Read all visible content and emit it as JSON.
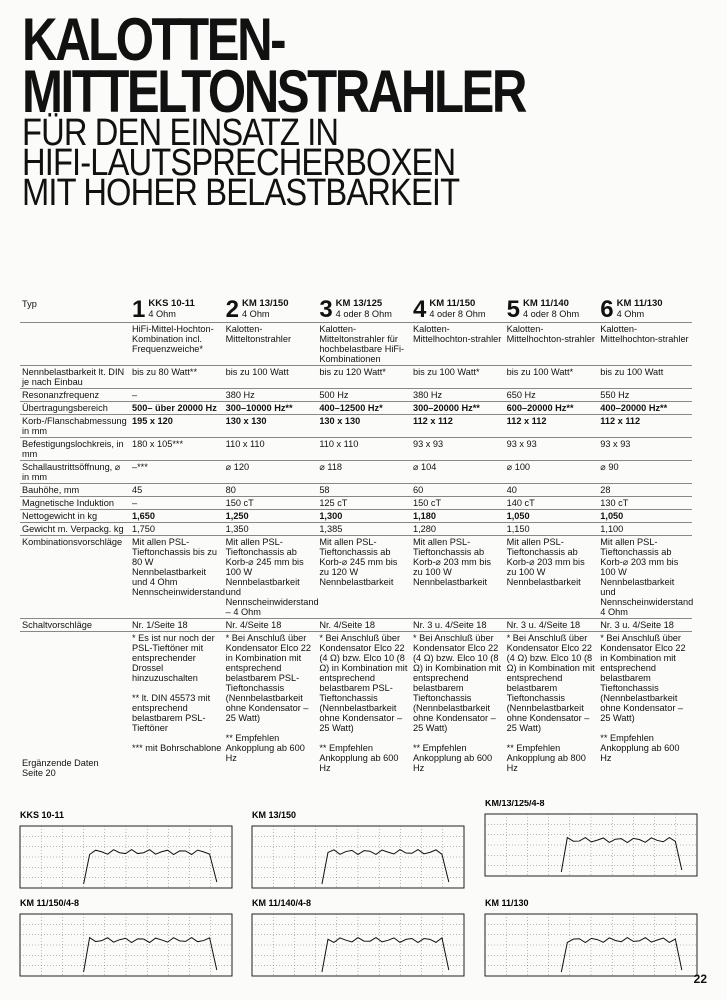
{
  "header": {
    "title_lines": [
      "KALOTTEN-",
      "MITTELTONSTRAHLER"
    ],
    "subtitle_lines": [
      "FÜR DEN EINSATZ IN",
      "HIFI-LAUTSPRECHERBOXEN",
      "MIT HOHER BELASTBARKEIT"
    ]
  },
  "table": {
    "type_label": "Typ",
    "models": [
      {
        "number": "1",
        "name": "KKS 10-11",
        "impedance": "4 Ohm",
        "description": "HiFi-Mittel-Hochton-Kombination incl. Frequenzweiche*"
      },
      {
        "number": "2",
        "name": "KM 13/150",
        "impedance": "4 Ohm",
        "description": "Kalotten-Mitteltonstrahler"
      },
      {
        "number": "3",
        "name": "KM 13/125",
        "impedance": "4 oder 8 Ohm",
        "description": "Kalotten-Mitteltonstrahler für hochbelastbare HiFi-Kombinationen"
      },
      {
        "number": "4",
        "name": "KM 11/150",
        "impedance": "4 oder 8 Ohm",
        "description": "Kalotten-Mittelhochton-strahler"
      },
      {
        "number": "5",
        "name": "KM 11/140",
        "impedance": "4 oder 8 Ohm",
        "description": "Kalotten-Mittelhochton-strahler"
      },
      {
        "number": "6",
        "name": "KM 11/130",
        "impedance": "4 Ohm",
        "description": "Kalotten-Mittelhochton-strahler"
      }
    ],
    "rows": [
      {
        "label": "Nennbelastbarkeit lt. DIN je nach Einbau",
        "cells": [
          "bis zu 80 Watt**",
          "bis zu 100 Watt",
          "bis zu 120 Watt*",
          "bis zu 100 Watt*",
          "bis zu 100 Watt*",
          "bis zu 100 Watt"
        ]
      },
      {
        "label": "Resonanzfrequenz",
        "cells": [
          "–",
          "380 Hz",
          "500 Hz",
          "380 Hz",
          "650 Hz",
          "550 Hz"
        ]
      },
      {
        "label": "Übertragungsbereich",
        "cells": [
          "500– über 20000 Hz",
          "300–10000 Hz**",
          "400–12500 Hz*",
          "300–20000 Hz**",
          "600–20000 Hz**",
          "400–20000 Hz**"
        ]
      },
      {
        "label": "Korb-/Flanschabmessung in mm",
        "cells": [
          "195 x 120",
          "130 x 130",
          "130 x 130",
          "112 x 112",
          "112 x 112",
          "112 x 112"
        ]
      },
      {
        "label": "Befestigungslochkreis, in mm",
        "cells": [
          "180 x 105***",
          "110 x 110",
          "110 x 110",
          "93 x 93",
          "93 x 93",
          "93 x 93"
        ]
      },
      {
        "label": "Schallaustrittsöffnung, ⌀ in mm",
        "cells": [
          "–***",
          "⌀ 120",
          "⌀ 118",
          "⌀ 104",
          "⌀ 100",
          "⌀ 90"
        ]
      },
      {
        "label": "Bauhöhe, mm",
        "cells": [
          "45",
          "80",
          "58",
          "60",
          "40",
          "28"
        ]
      },
      {
        "label": "Magnetische Induktion",
        "cells": [
          "–",
          "150 cT",
          "125 cT",
          "150 cT",
          "140 cT",
          "130 cT"
        ]
      },
      {
        "label": "Nettogewicht in kg",
        "cells": [
          "1,650",
          "1,250",
          "1,300",
          "1,180",
          "1,050",
          "1,050"
        ]
      },
      {
        "label": "Gewicht m. Verpackg. kg",
        "cells": [
          "1,750",
          "1,350",
          "1,385",
          "1,280",
          "1,150",
          "1,100"
        ]
      },
      {
        "label": "Kombinationsvorschläge",
        "cells": [
          "Mit allen PSL-Tieftonchassis bis zu 80 W Nennbelastbarkeit und 4 Ohm Nennscheinwiderstand",
          "Mit allen PSL-Tieftonchassis ab Korb-⌀ 245 mm bis 100 W Nennbelastbarkeit und Nennscheinwiderstand – 4 Ohm",
          "Mit allen PSL-Tieftonchassis ab Korb-⌀ 245 mm bis zu 120 W Nennbelastbarkeit",
          "Mit allen PSL-Tieftonchassis ab Korb-⌀ 203 mm bis zu 100 W Nennbelastbarkeit",
          "Mit allen PSL-Tieftonchassis ab Korb-⌀ 203 mm bis zu 100 W Nennbelastbarkeit",
          "Mit allen PSL-Tieftonchassis ab Korb-⌀ 203 mm bis 100 W Nennbelastbarkeit und Nennscheinwiderstand 4 Ohm"
        ]
      },
      {
        "label": "Schaltvorschläge",
        "cells": [
          "Nr. 1/Seite 18",
          "Nr. 4/Seite 18",
          "Nr. 4/Seite 18",
          "Nr. 3 u. 4/Seite 18",
          "Nr. 3 u. 4/Seite 18",
          "Nr. 3 u. 4/Seite 18"
        ]
      }
    ],
    "notes": [
      [
        "* Es ist nur noch der PSL-Tieftöner mit entsprechender Drossel hinzuzuschalten",
        "** lt. DIN 45573 mit entsprechend belastbarem PSL-Tieftöner",
        "*** mit Bohrschablone"
      ],
      [
        "* Bei Anschluß über Kondensator Elco 22 in Kombination mit entsprechend belastbarem PSL-Tieftonchassis (Nennbelastbarkeit ohne Kondensator – 25 Watt)",
        "** Empfehlen Ankopplung ab 600 Hz"
      ],
      [
        "* Bei Anschluß über Kondensator Elco 22 (4 Ω) bzw. Elco 10 (8 Ω) in Kombination mit entsprechend belastbarem PSL-Tieftonchassis (Nennbelastbarkeit ohne Kondensator – 25 Watt)",
        "** Empfehlen Ankopplung ab 600 Hz"
      ],
      [
        "* Bei Anschluß über Kondensator Elco 22 (4 Ω) bzw. Elco 10 (8 Ω) in Kombination mit entsprechend belastbarem Tieftonchassis (Nennbelastbarkeit ohne Kondensator – 25 Watt)",
        "** Empfehlen Ankopplung ab 600 Hz"
      ],
      [
        "* Bei Anschluß über Kondensator Elco 22 (4 Ω) bzw. Elco 10 (8 Ω) in Kombination mit entsprechend belastbarem Tieftonchassis (Nennbelastbarkeit ohne Kondensator – 25 Watt)",
        "** Empfehlen Ankopplung ab 800 Hz"
      ],
      [
        "* Bei Anschluß über Kondensator Elco 22 in Kombination mit entsprechend belastbarem Tieftonchassis (Nennbelastbarkeit ohne Kondensator – 25 Watt)",
        "** Empfehlen Ankopplung ab 600 Hz"
      ]
    ],
    "supplement": "Ergänzende Daten Seite 20"
  },
  "graphs": [
    {
      "label": "KKS 10-11"
    },
    {
      "label": "KM 13/150"
    },
    {
      "label": "KM/13/125/4-8"
    },
    {
      "label": "KM 11/150/4-8"
    },
    {
      "label": "KM 11/140/4-8"
    },
    {
      "label": "KM 11/130"
    }
  ],
  "page_number": "22"
}
